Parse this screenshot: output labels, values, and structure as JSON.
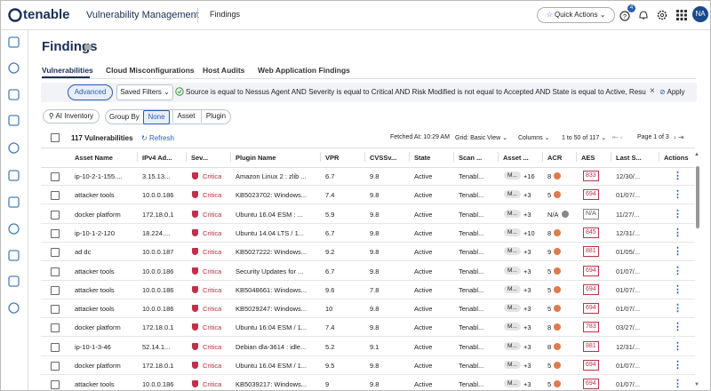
{
  "header": {
    "brand": "tenable",
    "product": "Vulnerability Management",
    "section": "Findings",
    "quick_actions": "Quick Actions",
    "notifications": "4",
    "avatar": "NA"
  },
  "page": {
    "title": "Findings",
    "tabs": [
      "Vulnerabilities",
      "Cloud Misconfigurations",
      "Host Audits",
      "Web Application Findings"
    ]
  },
  "filters": {
    "advanced": "Advanced",
    "saved_filters": "Saved Filters",
    "query": "Source is equal to Nessus Agent AND Severity is equal to Critical AND Risk Modified is not equal to Accepted AND State is equal to Active, Resurfaced, New",
    "apply": "Apply"
  },
  "toolbar": {
    "ai_inventory": "AI Inventory",
    "group_by": "Group By",
    "group_options": [
      "None",
      "Asset",
      "Plugin"
    ],
    "count": "117 Vulnerabilities",
    "refresh": "Refresh",
    "fetched": "Fetched At: 10:29 AM",
    "grid": "Grid: Basic View",
    "columns": "Columns",
    "range": "1 to 50 of 117",
    "page": "Page 1 of 3"
  },
  "table": {
    "columns": [
      "Asset Name",
      "IPv4 Ad...",
      "Sev...",
      "Plugin Name",
      "VPR",
      "CVSSv...",
      "State",
      "Scan ...",
      "Asset ...",
      "ACR",
      "AES",
      "Last S...",
      "Actions"
    ],
    "rows": [
      [
        "ip-10-2-1-155....",
        "3.15.13...",
        "Critica",
        "Amazon Linux 2 : zlib ...",
        "6.7",
        "9.8",
        "Active",
        "Tenabl...",
        "M...",
        "+16",
        "8",
        "833",
        "12/30/..."
      ],
      [
        "attacker tools",
        "10.0.0.186",
        "Critica",
        "KB5023702: Windows...",
        "7.4",
        "9.8",
        "Active",
        "Tenabl...",
        "M...",
        "+3",
        "5",
        "694",
        "01/07/..."
      ],
      [
        "docker platform",
        "172.18.0.1",
        "Critica",
        "Ubuntu 16.04 ESM : ...",
        "5.9",
        "9.8",
        "Active",
        "Tenabl...",
        "M...",
        "+3",
        "N/A",
        "N/A",
        "11/27/..."
      ],
      [
        "ip-10-1-2-120",
        "18.224....",
        "Critica",
        "Ubuntu 14.04 LTS / 1...",
        "6.7",
        "9.8",
        "Active",
        "Tenabl...",
        "M...",
        "+10",
        "8",
        "845",
        "12/31/..."
      ],
      [
        "ad dc",
        "10.0.0.187",
        "Critica",
        "KB5027222: Windows...",
        "9.2",
        "9.8",
        "Active",
        "Tenabl...",
        "M...",
        "+3",
        "9",
        "881",
        "01/05/..."
      ],
      [
        "attacker tools",
        "10.0.0.186",
        "Critica",
        "Security Updates for ...",
        "6.7",
        "9.8",
        "Active",
        "Tenabl...",
        "M...",
        "+3",
        "5",
        "694",
        "01/07/..."
      ],
      [
        "attacker tools",
        "10.0.0.186",
        "Critica",
        "KB5048661: Windows...",
        "9.6",
        "7.8",
        "Active",
        "Tenabl...",
        "M...",
        "+3",
        "5",
        "694",
        "01/07/..."
      ],
      [
        "attacker tools",
        "10.0.0.186",
        "Critica",
        "KB5029247: Windows...",
        "10",
        "9.8",
        "Active",
        "Tenabl...",
        "M...",
        "+3",
        "5",
        "694",
        "01/07/..."
      ],
      [
        "docker platform",
        "172.18.0.1",
        "Critica",
        "Ubuntu 16.04 ESM / 1...",
        "7.4",
        "9.8",
        "Active",
        "Tenabl...",
        "M...",
        "+3",
        "8",
        "783",
        "03/27/..."
      ],
      [
        "ip-10-1-3-46",
        "52.14.1...",
        "Critica",
        "Debian dla-3614 : idle...",
        "5.2",
        "9.1",
        "Active",
        "Tenabl...",
        "M...",
        "+3",
        "8",
        "881",
        "12/31/..."
      ],
      [
        "docker platform",
        "172.18.0.1",
        "Critica",
        "Ubuntu 16.04 ESM / 1...",
        "9.5",
        "9.8",
        "Active",
        "Tenabl...",
        "M...",
        "+3",
        "5",
        "694",
        "01/07/..."
      ],
      [
        "attacker tools",
        "10.0.0.186",
        "Critica",
        "KB5039217: Windows...",
        "9",
        "9.8",
        "Active",
        "Tenabl...",
        "M...",
        "+3",
        "5",
        "694",
        "01/07/..."
      ]
    ]
  }
}
